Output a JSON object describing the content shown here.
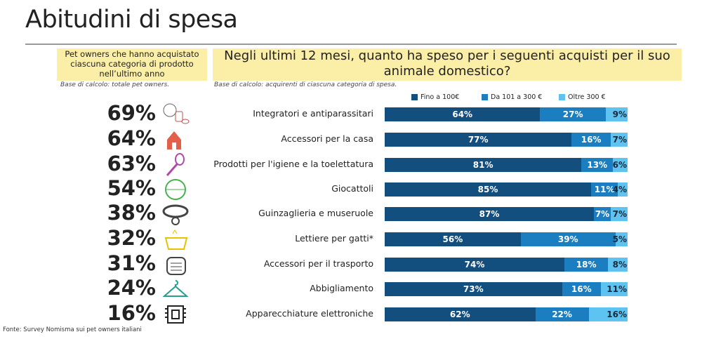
{
  "title": "Abitudini di spesa",
  "left_header": "Pet owners che hanno acquistato ciascuna categoria di prodotto nell’ultimo anno",
  "left_base": "Base di calcolo: totale pet owners.",
  "right_header": "Negli ultimi 12 mesi, quanto ha speso per i seguenti acquisti per il suo animale domestico?",
  "right_base": "Base di calcolo: acquirenti di ciascuna categoria di spesa.",
  "source": "Fonte: Survey Nomisma sui pet owners italiani",
  "colors": {
    "fino": "#124e7e",
    "da": "#1b7ec0",
    "oltre": "#5ec3f1",
    "header_bg": "#fbeea6"
  },
  "chart_data": {
    "type": "bar",
    "stacked": true,
    "orientation": "horizontal",
    "legend_position": "top",
    "categories": [
      "Integratori e antiparassitari",
      "Accessori per la casa",
      "Prodotti per l'igiene e la toelettatura",
      "Giocattoli",
      "Guinzaglieria e museruole",
      "Lettiere per gatti*",
      "Accessori per il trasporto",
      "Abbigliamento",
      "Apparecchiature elettroniche"
    ],
    "purchased_share": [
      "69%",
      "64%",
      "63%",
      "54%",
      "38%",
      "32%",
      "31%",
      "24%",
      "16%"
    ],
    "purchased_icons": [
      "supplements-icon",
      "house-icon",
      "brush-icon",
      "ball-icon",
      "collar-icon",
      "litter-box-icon",
      "carrier-icon",
      "hanger-icon",
      "chip-icon"
    ],
    "icon_colors": [
      "#c0504d",
      "#e0604a",
      "#b04aa8",
      "#4caf50",
      "#444444",
      "#e6c200",
      "#444444",
      "#2a9d8f",
      "#222222"
    ],
    "series": [
      {
        "name": "Fino a 100€",
        "values": [
          64,
          77,
          81,
          85,
          87,
          56,
          74,
          73,
          62
        ]
      },
      {
        "name": "Da 101 a 300 €",
        "values": [
          27,
          16,
          13,
          11,
          7,
          39,
          18,
          16,
          22
        ]
      },
      {
        "name": "Oltre 300 €",
        "values": [
          9,
          7,
          6,
          4,
          7,
          5,
          8,
          11,
          16
        ]
      }
    ]
  }
}
